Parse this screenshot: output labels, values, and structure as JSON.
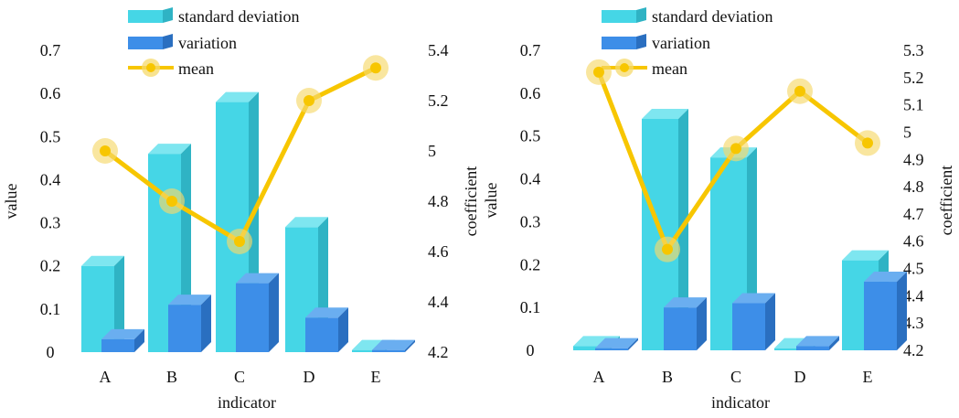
{
  "colors": {
    "std_front": "#45d6e6",
    "std_top": "#7ee6f0",
    "std_side": "#2fb3c4",
    "var_front": "#3d8ee8",
    "var_top": "#6aaef0",
    "var_side": "#2a6fc0",
    "mean_line": "#f7c600",
    "mean_halo": "#f6d96b"
  },
  "legend": {
    "std_label": "standard deviation",
    "var_label": "variation",
    "mean_label": "mean"
  },
  "chart_data": [
    {
      "type": "bar",
      "categories": [
        "A",
        "B",
        "C",
        "D",
        "E"
      ],
      "series": [
        {
          "name": "standard deviation",
          "axis": "left",
          "values": [
            0.2,
            0.46,
            0.58,
            0.29,
            0.005
          ]
        },
        {
          "name": "variation",
          "axis": "left",
          "values": [
            0.03,
            0.11,
            0.16,
            0.08,
            0.005
          ]
        },
        {
          "name": "mean",
          "axis": "right",
          "type": "line",
          "values": [
            5.0,
            4.8,
            4.64,
            5.2,
            5.33
          ]
        }
      ],
      "xlabel": "indicator",
      "ylabel": "value",
      "y2label": "coefficient",
      "ylim": [
        0,
        0.7
      ],
      "yticks": [
        "0",
        "0.1",
        "0.2",
        "0.3",
        "0.4",
        "0.5",
        "0.6",
        "0.7"
      ],
      "y2lim": [
        4.2,
        5.4
      ],
      "y2ticks": [
        "4.2",
        "4.4",
        "4.6",
        "4.8",
        "5",
        "5.2",
        "5.4"
      ],
      "legend_position": "top-left"
    },
    {
      "type": "bar",
      "categories": [
        "A",
        "B",
        "C",
        "D",
        "E"
      ],
      "series": [
        {
          "name": "standard deviation",
          "axis": "left",
          "values": [
            0.01,
            0.54,
            0.45,
            0.005,
            0.21
          ]
        },
        {
          "name": "variation",
          "axis": "left",
          "values": [
            0.005,
            0.1,
            0.11,
            0.01,
            0.16
          ]
        },
        {
          "name": "mean",
          "axis": "right",
          "type": "line",
          "values": [
            5.22,
            4.57,
            4.94,
            5.15,
            4.96
          ]
        }
      ],
      "xlabel": "indicator",
      "ylabel": "value",
      "y2label": "coefficient",
      "ylim": [
        0,
        0.7
      ],
      "yticks": [
        "0",
        "0.1",
        "0.2",
        "0.3",
        "0.4",
        "0.5",
        "0.6",
        "0.7"
      ],
      "y2lim": [
        4.2,
        5.3
      ],
      "y2ticks": [
        "4.2",
        "4.3",
        "4.4",
        "4.5",
        "4.6",
        "4.7",
        "4.8",
        "4.9",
        "5",
        "5.1",
        "5.2",
        "5.3"
      ],
      "legend_position": "top-left"
    }
  ]
}
